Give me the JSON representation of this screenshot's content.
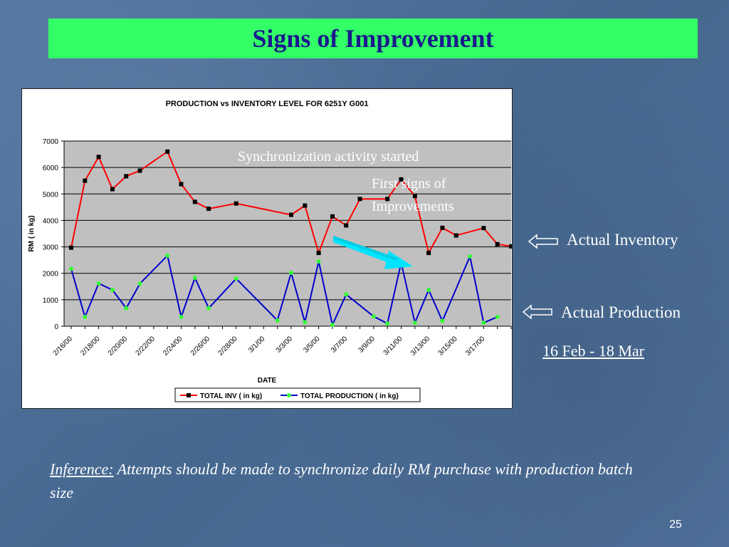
{
  "slide": {
    "title": "Signs of Improvement",
    "page_number": "25",
    "inference_lead": "Inference:",
    "inference_text": " Attempts should be made to synchronize daily RM purchase with production batch size",
    "annotation_sync": "Synchronization activity started",
    "annotation_first_signs": "First signs of Improvements",
    "label_inventory": "Actual Inventory",
    "label_production": "Actual Production",
    "date_range": "16 Feb - 18 Mar",
    "colors": {
      "title_bg": "#33ff66",
      "title_text": "#1a1a8c",
      "inventory": "#ff0000",
      "production": "#0000cc",
      "highlight_arrow": "#00e5ff"
    }
  },
  "chart_data": {
    "type": "line",
    "title": "PRODUCTION vs INVENTORY LEVEL FOR 6251Y G001",
    "xlabel": "DATE",
    "ylabel": "RM ( in kg)",
    "ylim": [
      0,
      7000
    ],
    "yticks": [
      0,
      1000,
      2000,
      3000,
      4000,
      5000,
      6000,
      7000
    ],
    "xlim": [
      "2/16/00",
      "3/19/00"
    ],
    "xticks": [
      "2/16/00",
      "2/18/00",
      "2/20/00",
      "2/22/00",
      "2/24/00",
      "2/26/00",
      "2/28/00",
      "3/1/00",
      "3/3/00",
      "3/5/00",
      "3/7/00",
      "3/9/00",
      "3/11/00",
      "3/13/00",
      "3/15/00",
      "3/17/00"
    ],
    "grid": true,
    "legend": "bottom",
    "series": [
      {
        "name": "TOTAL INV ( in kg)",
        "color": "#ff0000",
        "marker": "square",
        "points": [
          [
            "2/16/00",
            2970
          ],
          [
            "2/17/00",
            5500
          ],
          [
            "2/18/00",
            6400
          ],
          [
            "2/19/00",
            5180
          ],
          [
            "2/20/00",
            5670
          ],
          [
            "2/21/00",
            5880
          ],
          [
            "2/23/00",
            6600
          ],
          [
            "2/24/00",
            5370
          ],
          [
            "2/25/00",
            4700
          ],
          [
            "2/26/00",
            4440
          ],
          [
            "2/28/00",
            4640
          ],
          [
            "3/3/00",
            4210
          ],
          [
            "3/4/00",
            4560
          ],
          [
            "3/5/00",
            2770
          ],
          [
            "3/6/00",
            4150
          ],
          [
            "3/7/00",
            3810
          ],
          [
            "3/8/00",
            4810
          ],
          [
            "3/10/00",
            4810
          ],
          [
            "3/11/00",
            5550
          ],
          [
            "3/12/00",
            4920
          ],
          [
            "3/13/00",
            2770
          ],
          [
            "3/14/00",
            3720
          ],
          [
            "3/15/00",
            3430
          ],
          [
            "3/17/00",
            3710
          ],
          [
            "3/18/00",
            3100
          ],
          [
            "3/19/00",
            3020
          ]
        ]
      },
      {
        "name": "TOTAL PRODUCTION ( in kg)",
        "color": "#0000cc",
        "marker": "circle",
        "points": [
          [
            "2/16/00",
            2170
          ],
          [
            "2/17/00",
            350
          ],
          [
            "2/18/00",
            1620
          ],
          [
            "2/19/00",
            1370
          ],
          [
            "2/20/00",
            680
          ],
          [
            "2/21/00",
            1610
          ],
          [
            "2/23/00",
            2670
          ],
          [
            "2/24/00",
            350
          ],
          [
            "2/25/00",
            1830
          ],
          [
            "2/26/00",
            680
          ],
          [
            "2/28/00",
            1800
          ],
          [
            "3/2/00",
            220
          ],
          [
            "3/3/00",
            2020
          ],
          [
            "3/4/00",
            150
          ],
          [
            "3/5/00",
            2450
          ],
          [
            "3/6/00",
            50
          ],
          [
            "3/7/00",
            1200
          ],
          [
            "3/9/00",
            370
          ],
          [
            "3/10/00",
            100
          ],
          [
            "3/11/00",
            2400
          ],
          [
            "3/12/00",
            130
          ],
          [
            "3/13/00",
            1370
          ],
          [
            "3/14/00",
            200
          ],
          [
            "3/16/00",
            2640
          ],
          [
            "3/17/00",
            130
          ],
          [
            "3/18/00",
            350
          ]
        ]
      }
    ]
  }
}
